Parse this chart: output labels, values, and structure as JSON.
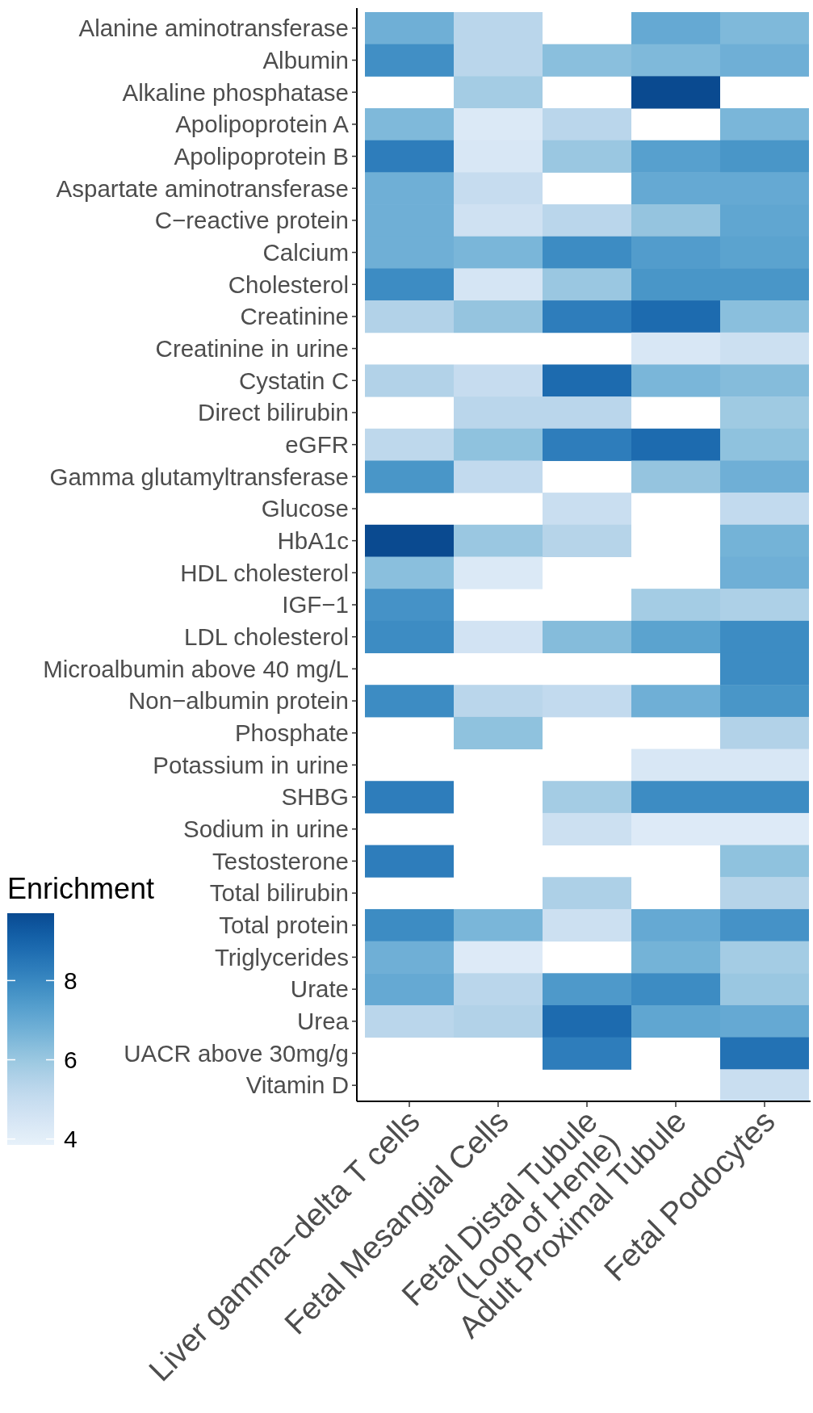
{
  "chart_data": {
    "type": "heatmap",
    "clabel": "Enrichment",
    "clim": [
      3.85,
      9.7
    ],
    "cticks": [
      4,
      6,
      8
    ],
    "categories": [
      "Liver gamma−delta T cells",
      "Fetal Mesangial Cells",
      "Fetal Distal Tubule\n(Loop of Henle)",
      "Adult Proximal Tubule",
      "Fetal Podocytes"
    ],
    "y_categories": [
      "Alanine aminotransferase",
      "Albumin",
      "Alkaline phosphatase",
      "Apolipoprotein A",
      "Apolipoprotein B",
      "Aspartate aminotransferase",
      "C−reactive protein",
      "Calcium",
      "Cholesterol",
      "Creatinine",
      "Creatinine in urine",
      "Cystatin C",
      "Direct bilirubin",
      "eGFR",
      "Gamma glutamyltransferase",
      "Glucose",
      "HbA1c",
      "HDL cholesterol",
      "IGF−1",
      "LDL cholesterol",
      "Microalbumin above 40 mg/L",
      "Non−albumin protein",
      "Phosphate",
      "Potassium in urine",
      "SHBG",
      "Sodium in urine",
      "Testosterone",
      "Total bilirubin",
      "Total protein",
      "Triglycerides",
      "Urate",
      "Urea",
      "UACR above 30mg/g",
      "Vitamin D"
    ],
    "cells": [
      [
        6.8,
        5.3,
        null,
        7.0,
        6.5
      ],
      [
        7.8,
        5.3,
        6.3,
        6.5,
        6.8
      ],
      [
        null,
        5.8,
        null,
        9.7,
        null
      ],
      [
        6.5,
        4.3,
        5.3,
        null,
        6.6
      ],
      [
        8.3,
        4.4,
        6.0,
        7.3,
        7.6
      ],
      [
        6.8,
        5.0,
        null,
        7.0,
        7.0
      ],
      [
        6.8,
        4.7,
        5.3,
        6.1,
        7.1
      ],
      [
        6.8,
        6.6,
        7.9,
        7.4,
        7.2
      ],
      [
        7.9,
        4.5,
        6.0,
        7.6,
        7.6
      ],
      [
        5.5,
        6.1,
        8.3,
        8.8,
        6.3
      ],
      [
        null,
        null,
        null,
        4.4,
        4.8
      ],
      [
        5.5,
        5.0,
        8.8,
        6.6,
        6.4
      ],
      [
        null,
        5.3,
        5.3,
        null,
        5.9
      ],
      [
        5.2,
        6.2,
        8.3,
        8.8,
        6.2
      ],
      [
        7.6,
        5.1,
        null,
        6.1,
        6.8
      ],
      [
        null,
        null,
        4.9,
        null,
        5.1
      ],
      [
        9.7,
        6.0,
        5.4,
        null,
        6.7
      ],
      [
        6.3,
        4.3,
        null,
        null,
        6.8
      ],
      [
        7.7,
        null,
        null,
        5.8,
        5.6
      ],
      [
        7.9,
        4.6,
        6.4,
        7.2,
        7.9
      ],
      [
        null,
        null,
        null,
        null,
        7.9
      ],
      [
        7.9,
        5.3,
        5.1,
        6.8,
        7.6
      ],
      [
        null,
        6.2,
        null,
        null,
        5.5
      ],
      [
        null,
        null,
        null,
        4.4,
        4.4
      ],
      [
        8.3,
        null,
        5.8,
        7.9,
        7.9
      ],
      [
        null,
        null,
        4.8,
        4.2,
        4.2
      ],
      [
        8.3,
        null,
        null,
        null,
        6.2
      ],
      [
        null,
        null,
        5.6,
        null,
        5.4
      ],
      [
        7.9,
        6.6,
        4.8,
        7.0,
        7.7
      ],
      [
        6.8,
        4.2,
        null,
        6.7,
        5.8
      ],
      [
        7.0,
        5.3,
        7.5,
        7.9,
        6.0
      ],
      [
        5.3,
        5.5,
        8.8,
        7.1,
        7.0
      ],
      [
        null,
        null,
        8.3,
        null,
        8.6
      ],
      [
        null,
        null,
        null,
        null,
        4.9
      ]
    ]
  }
}
